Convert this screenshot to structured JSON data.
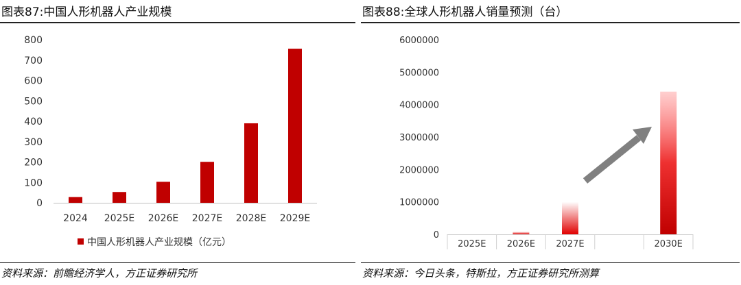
{
  "left": {
    "title": "图表87:中国人形机器人产业规模",
    "source": "资料来源：前瞻经济学人，方正证券研究所",
    "chart_data": {
      "type": "bar",
      "categories": [
        "2024",
        "2025E",
        "2026E",
        "2027E",
        "2028E",
        "2029E"
      ],
      "series": [
        {
          "name": "中国人形机器人产业规模（亿元）",
          "values": [
            28,
            53,
            103,
            201,
            390,
            756
          ]
        }
      ],
      "ylim": [
        0,
        800
      ],
      "yticks": [
        "0",
        "100",
        "200",
        "300",
        "400",
        "500",
        "600",
        "700",
        "800"
      ],
      "legend": "bottom",
      "grid": false,
      "color": "#c00000"
    }
  },
  "right": {
    "title": "图表88:全球人形机器人销量预测（台）",
    "source": "资料来源：今日头条，特斯拉，方正证券研究所测算",
    "chart_data": {
      "type": "bar",
      "categories": [
        "2025E",
        "2026E",
        "2027E",
        "",
        "2030E"
      ],
      "values": [
        0,
        80000,
        1000000,
        null,
        4400000
      ],
      "ylim": [
        0,
        6000000
      ],
      "yticks": [
        "0",
        "1000000",
        "2000000",
        "3000000",
        "4000000",
        "5000000",
        "6000000"
      ],
      "grid": false,
      "color": "#e00000",
      "annotation": "gray upward-trend arrow"
    }
  }
}
